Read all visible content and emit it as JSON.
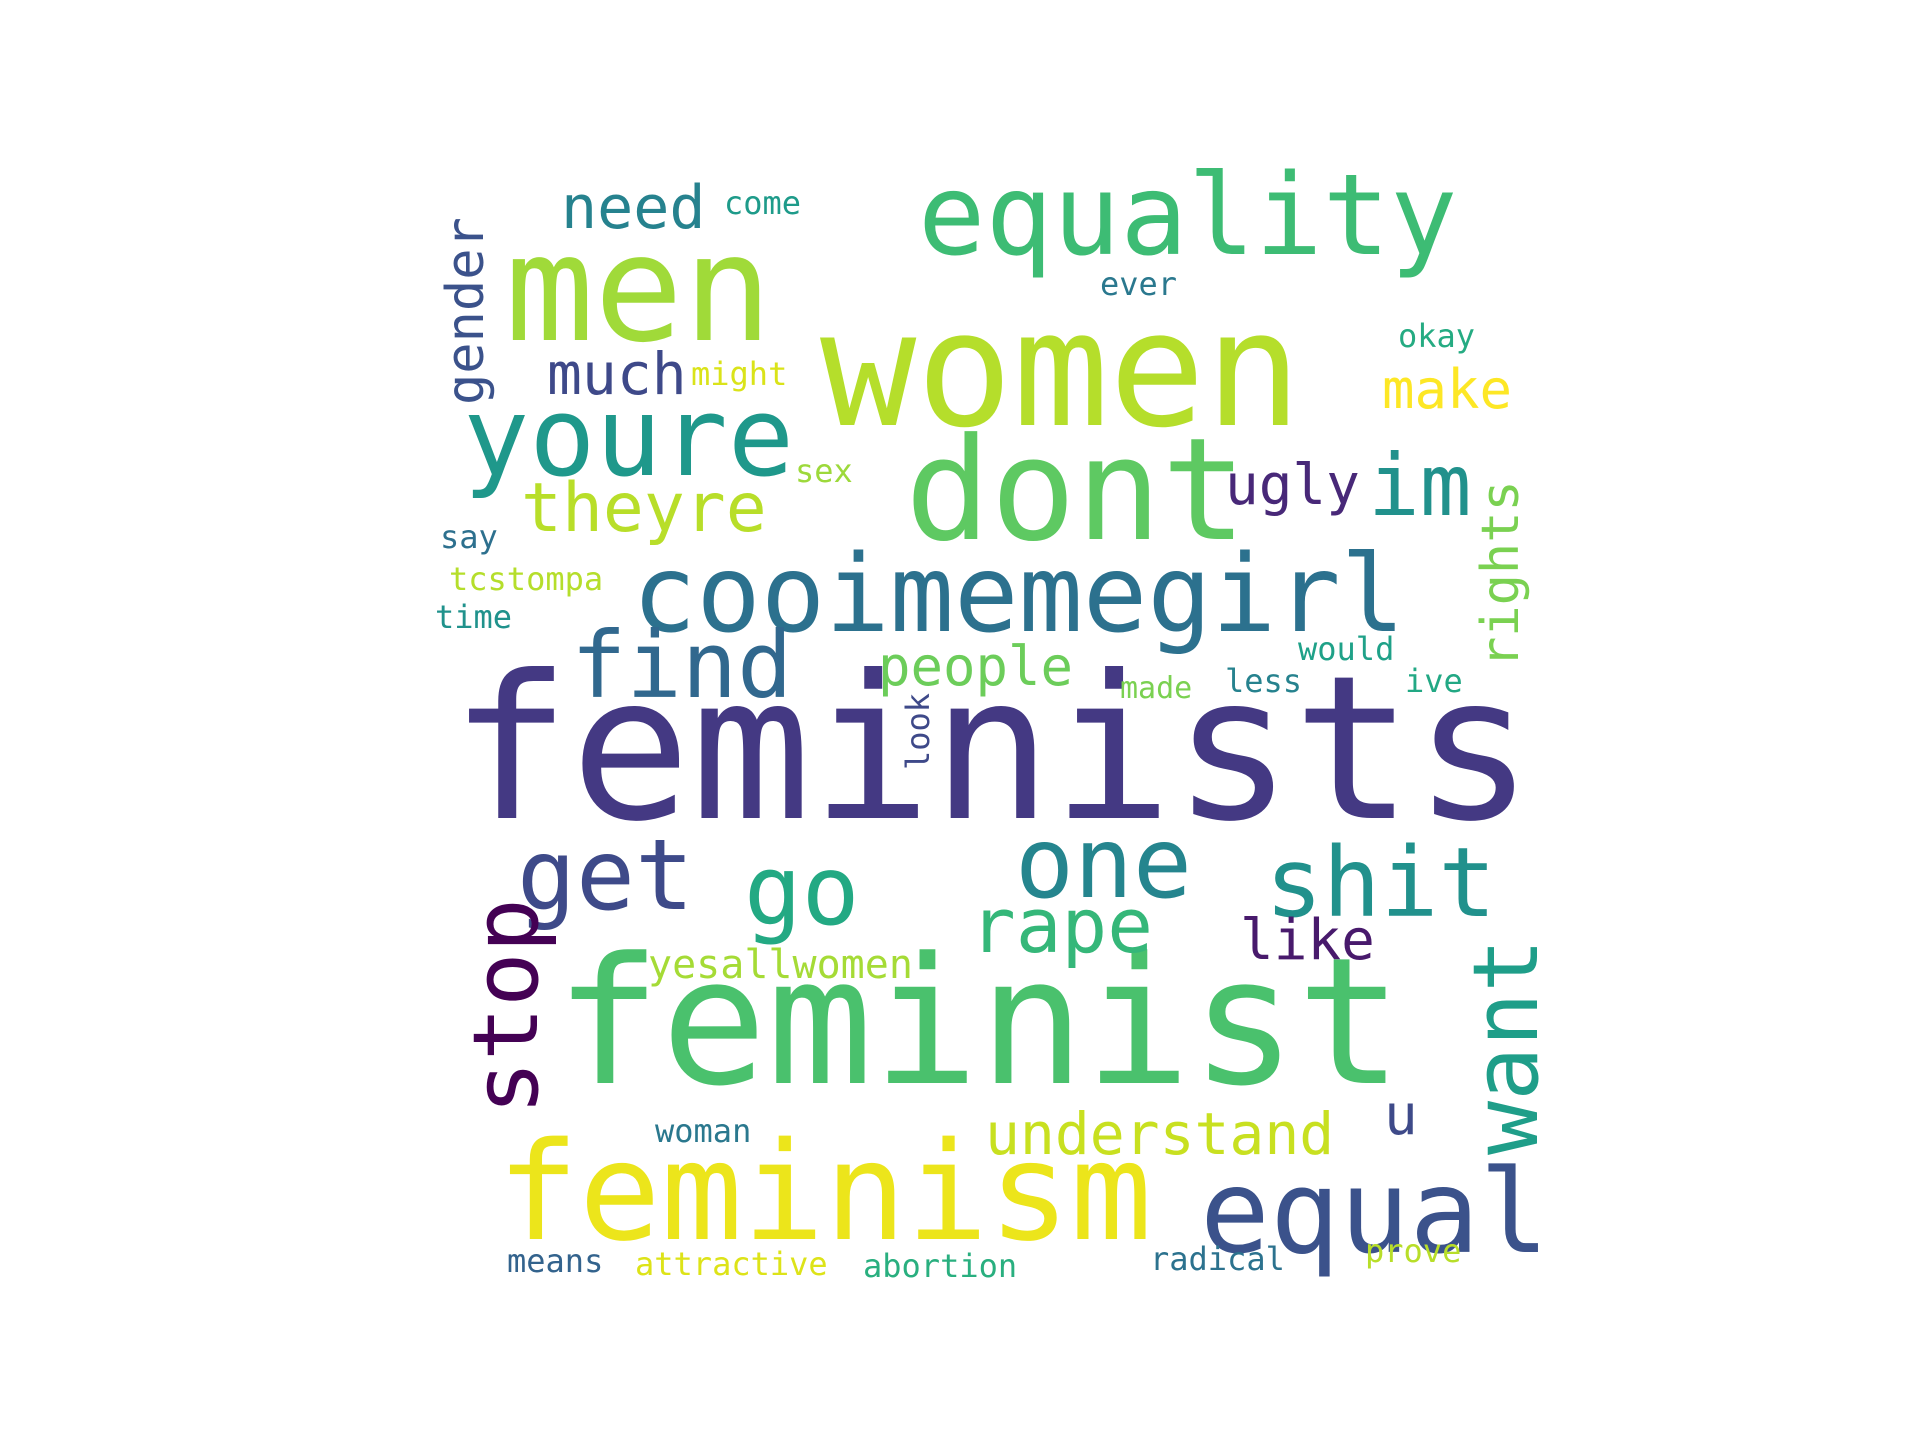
{
  "words": [
    {
      "id": "feminists",
      "text": "feminists",
      "color": "#443983"
    },
    {
      "id": "feminist",
      "text": "feminist",
      "color": "#4ac16d"
    },
    {
      "id": "women",
      "text": "women",
      "color": "#b5de2b"
    },
    {
      "id": "men",
      "text": "men",
      "color": "#a0da39"
    },
    {
      "id": "equality",
      "text": "equality",
      "color": "#3dbc74"
    },
    {
      "id": "dont",
      "text": "dont",
      "color": "#5ec962"
    },
    {
      "id": "youre",
      "text": "youre",
      "color": "#1f988b"
    },
    {
      "id": "cooimemegirl",
      "text": "cooimemegirl",
      "color": "#2c718e"
    },
    {
      "id": "feminism",
      "text": "feminism",
      "color": "#ece51b"
    },
    {
      "id": "equal",
      "text": "equal",
      "color": "#3b528b"
    },
    {
      "id": "find",
      "text": "find",
      "color": "#31688e"
    },
    {
      "id": "get",
      "text": "get",
      "color": "#3e4a89"
    },
    {
      "id": "go",
      "text": "go",
      "color": "#23a983"
    },
    {
      "id": "one",
      "text": "one",
      "color": "#25858e"
    },
    {
      "id": "shit",
      "text": "shit",
      "color": "#21918c"
    },
    {
      "id": "rape",
      "text": "rape",
      "color": "#35b779"
    },
    {
      "id": "stop",
      "text": "stop",
      "color": "#440154"
    },
    {
      "id": "want",
      "text": "want",
      "color": "#1f9e89"
    },
    {
      "id": "understand",
      "text": "understand",
      "color": "#c8e020"
    },
    {
      "id": "theyre",
      "text": "theyre",
      "color": "#b8de29"
    },
    {
      "id": "im",
      "text": "im",
      "color": "#21918c"
    },
    {
      "id": "ugly",
      "text": "ugly",
      "color": "#482878"
    },
    {
      "id": "rights",
      "text": "rights",
      "color": "#7ad151"
    },
    {
      "id": "much",
      "text": "much",
      "color": "#3e4989"
    },
    {
      "id": "need",
      "text": "need",
      "color": "#26828e"
    },
    {
      "id": "gender",
      "text": "gender",
      "color": "#3b528b"
    },
    {
      "id": "make",
      "text": "make",
      "color": "#fde725"
    },
    {
      "id": "people",
      "text": "people",
      "color": "#6ccd5a"
    },
    {
      "id": "like",
      "text": "like",
      "color": "#481a6c"
    },
    {
      "id": "u",
      "text": "u",
      "color": "#3e4a89"
    },
    {
      "id": "yesallwomen",
      "text": "yesallwomen",
      "color": "#a5db36"
    },
    {
      "id": "come",
      "text": "come",
      "color": "#1e9b8a"
    },
    {
      "id": "ever",
      "text": "ever",
      "color": "#2a788e"
    },
    {
      "id": "okay",
      "text": "okay",
      "color": "#25ab82"
    },
    {
      "id": "might",
      "text": "might",
      "color": "#dae319"
    },
    {
      "id": "sex",
      "text": "sex",
      "color": "#9dd93b"
    },
    {
      "id": "say",
      "text": "say",
      "color": "#2d708e"
    },
    {
      "id": "tcstompa",
      "text": "tcstompa",
      "color": "#b5de2b"
    },
    {
      "id": "time",
      "text": "time",
      "color": "#20928c"
    },
    {
      "id": "would",
      "text": "would",
      "color": "#1fa188"
    },
    {
      "id": "made",
      "text": "made",
      "color": "#7ad151"
    },
    {
      "id": "less",
      "text": "less",
      "color": "#26828e"
    },
    {
      "id": "ive",
      "text": "ive",
      "color": "#22a884"
    },
    {
      "id": "look",
      "text": "look",
      "color": "#3e4989"
    },
    {
      "id": "woman",
      "text": "woman",
      "color": "#2a788e"
    },
    {
      "id": "means",
      "text": "means",
      "color": "#33638d"
    },
    {
      "id": "attractive",
      "text": "attractive",
      "color": "#dde318"
    },
    {
      "id": "abortion",
      "text": "abortion",
      "color": "#29af7f"
    },
    {
      "id": "radical",
      "text": "radical",
      "color": "#2c728e"
    },
    {
      "id": "prove",
      "text": "prove",
      "color": "#b8de29"
    }
  ]
}
